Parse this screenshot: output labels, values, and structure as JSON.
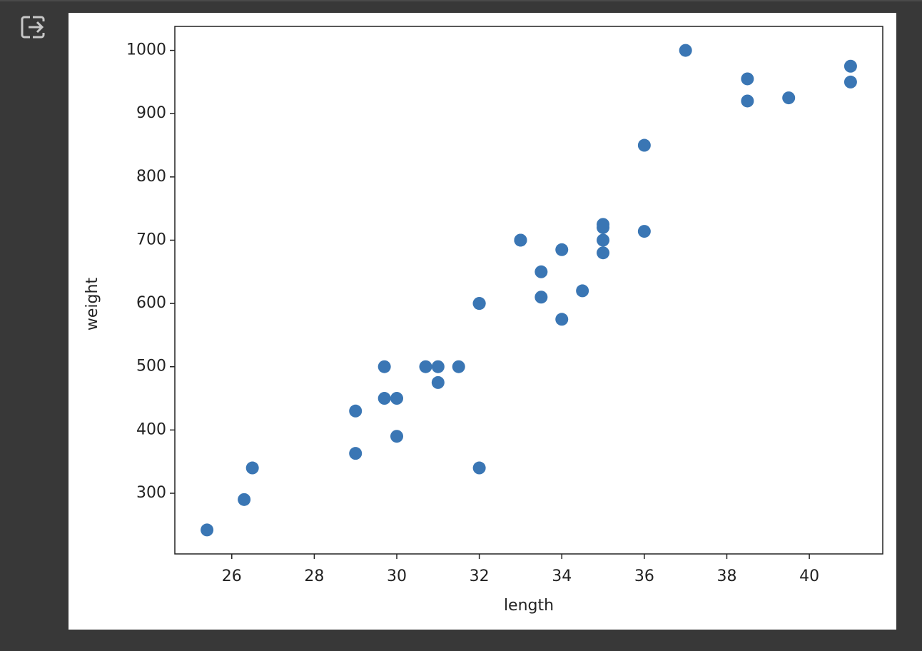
{
  "chart_data": {
    "type": "scatter",
    "x_label": "length",
    "y_label": "weight",
    "color": "#3a76b4",
    "x": [
      25.4,
      26.3,
      26.5,
      29,
      29,
      29.7,
      29.7,
      30,
      30,
      30.7,
      31,
      31,
      31.5,
      32,
      32,
      32,
      33,
      33,
      33.5,
      33.5,
      34,
      34,
      34.5,
      35,
      35,
      35,
      35,
      36,
      36,
      37,
      38.5,
      38.5,
      39.5,
      41,
      41
    ],
    "values": [
      242,
      290,
      340,
      363,
      430,
      450,
      500,
      390,
      450,
      500,
      475,
      500,
      500,
      340,
      600,
      600,
      700,
      700,
      610,
      650,
      575,
      685,
      620,
      680,
      700,
      725,
      720,
      714,
      850,
      1000,
      920,
      955,
      925,
      975,
      950
    ],
    "xlim": [
      24.62,
      41.78
    ],
    "ylim": [
      204.1,
      1037.9
    ],
    "xticks": [
      26,
      28,
      30,
      32,
      34,
      36,
      38,
      40
    ],
    "yticks": [
      300,
      400,
      500,
      600,
      700,
      800,
      900,
      1000
    ],
    "grid": false
  }
}
